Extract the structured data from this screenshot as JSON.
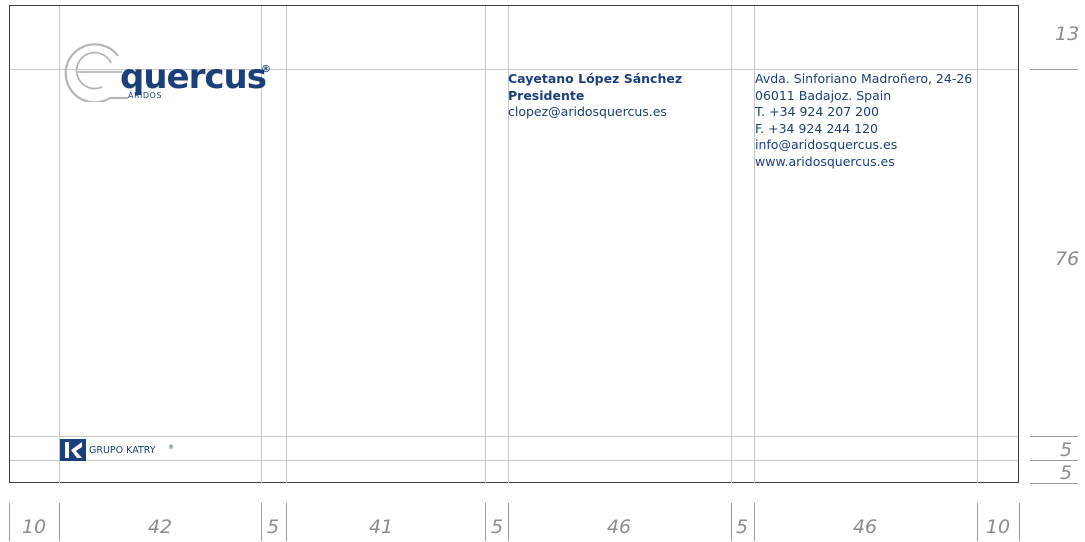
{
  "colors": {
    "brand_navy": "#1b3f7a",
    "guide_gray": "#c8c8c8",
    "label_gray": "#8c8c8c",
    "logo_gray": "#b5b5b5"
  },
  "logo": {
    "wordmark": "quercus",
    "registered": "®",
    "subtitle": "ÁRIDOS"
  },
  "contact": {
    "name": "Cayetano López Sánchez",
    "title": "Presidente",
    "email": "clopez@aridosquercus.es"
  },
  "company": {
    "address": "Avda. Sinforiano Madroñero, 24-26",
    "city": "06011 Badajoz. Spain",
    "phone": "T. +34 924 207 200",
    "fax": "F. +34 924 244 120",
    "email": "info@aridosquercus.es",
    "web": "www.aridosquercus.es"
  },
  "footer_brand": {
    "label": "GRUPO KATRY",
    "registered": "®"
  },
  "dimensions": {
    "columns": [
      "10",
      "42",
      "5",
      "41",
      "5",
      "46",
      "5",
      "46",
      "10"
    ],
    "rows": [
      "13",
      "76",
      "5",
      "5"
    ]
  }
}
